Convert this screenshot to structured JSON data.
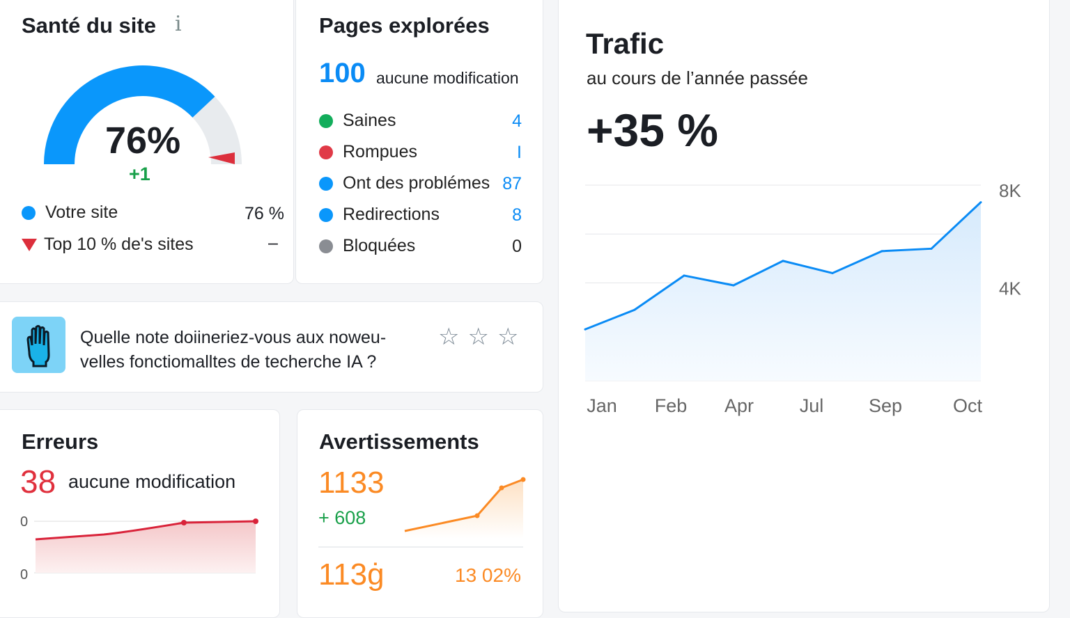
{
  "health": {
    "title": "Santé du site",
    "info_icon": "info-icon",
    "score": "76%",
    "score_value": 76,
    "delta": "+1",
    "legend": [
      {
        "label": "Votre site",
        "value": "76 %",
        "color": "#0a97fb"
      },
      {
        "label": "Top 10 % de's sites",
        "value": "–",
        "color": "#dc2f3c"
      }
    ]
  },
  "crawled": {
    "title": "Pages explorées",
    "count": "100",
    "change": "aucune modification",
    "items": [
      {
        "label": "Saines",
        "value": "4",
        "color": "#12ad5b",
        "vcolor": "#0a8bf5"
      },
      {
        "label": "Rompues",
        "value": "I",
        "color": "#e03a47",
        "vcolor": "#0a8bf5"
      },
      {
        "label": "Ont des problémes",
        "value": "87",
        "color": "#0a97fb",
        "vcolor": "#0a8bf5"
      },
      {
        "label": "Redirections",
        "value": "8",
        "color": "#0a97fb",
        "vcolor": "#0a8bf5"
      },
      {
        "label": "Bloquées",
        "value": "0",
        "color": "#8a8d93",
        "vcolor": "#222"
      }
    ]
  },
  "survey": {
    "question_line1": "Quelle note doiineriez-vous aux noweu-",
    "question_line2": "velles fonctiomalltes de techerche IA ?",
    "stars": 3
  },
  "errors": {
    "title": "Erreurs",
    "count": "38",
    "change": "aucune modification",
    "axis_top": "0",
    "axis_bottom": "0"
  },
  "warnings": {
    "title": "Avertissements",
    "count": "1133",
    "delta": "+ 608",
    "count2": "113ġ",
    "percent": "13 02%"
  },
  "traffic": {
    "title": "Trafic",
    "subtitle": "au cours de l’année passée",
    "change": "+35 %"
  },
  "chart_data": {
    "type": "area",
    "title": "Trafic",
    "x": [
      "Jan",
      "",
      "Feb",
      "",
      "Apr",
      "",
      "Jul",
      "",
      "Sep"
    ],
    "values": [
      2100,
      2900,
      4300,
      3900,
      4900,
      4400,
      5300,
      5400,
      7300
    ],
    "tick_labels": [
      "Jan",
      "Feb",
      "Apr",
      "Jul",
      "Sep",
      "Oct"
    ],
    "yticks": [
      {
        "v": 8000,
        "label": "8K"
      },
      {
        "v": 4000,
        "label": "4K"
      }
    ],
    "ylim": [
      0,
      8000
    ],
    "grid": true,
    "color": "#0a8bf5"
  }
}
